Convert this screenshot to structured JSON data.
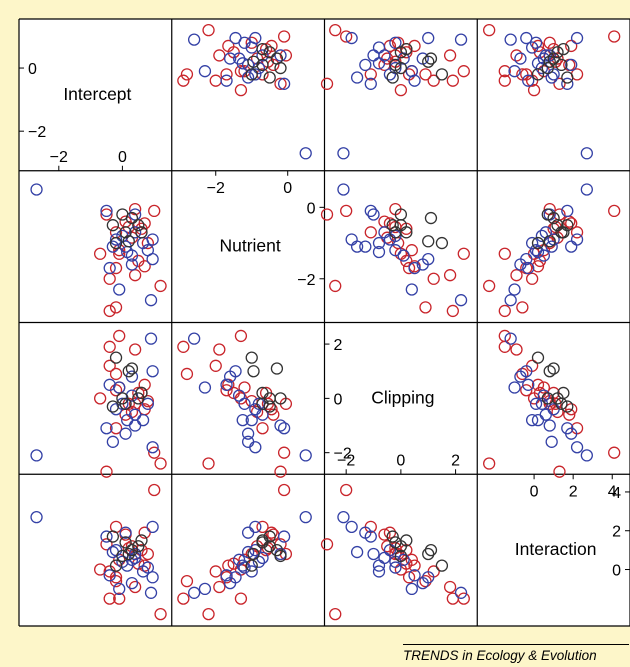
{
  "colors": {
    "background": "#fdf6c9",
    "panel": "#ffffff",
    "red": "#c9252b",
    "blue": "#3441a6",
    "black": "#333333"
  },
  "footer": {
    "source": "TRENDS in Ecology & Evolution"
  },
  "chart_data": {
    "type": "scatter",
    "variables": [
      "Intercept",
      "Nutrient",
      "Clipping",
      "Interaction"
    ],
    "diagonal_labels": [
      "Intercept",
      "Nutrient",
      "Clipping",
      "Interaction"
    ],
    "ranges": {
      "Intercept": [
        -3.0,
        1.3
      ],
      "Nutrient": [
        -3.0,
        0.8
      ],
      "Clipping": [
        -2.5,
        2.5
      ],
      "Interaction": [
        -2.5,
        4.5
      ]
    },
    "ticks": {
      "Intercept": [
        -2,
        0
      ],
      "Nutrient": [
        -2,
        0
      ],
      "Clipping": [
        -2,
        0,
        2
      ],
      "Interaction": [
        0,
        2,
        4
      ]
    },
    "tick_text": {
      "Intercept": [
        "−2",
        "0"
      ],
      "Nutrient": [
        "−2",
        "0"
      ],
      "Clipping": [
        "−2",
        "0",
        "2"
      ],
      "Interaction": [
        "0",
        "2",
        "4"
      ]
    },
    "grid": false,
    "legend": "none",
    "marker": "open-circle",
    "groups": [
      {
        "color": "red",
        "points": [
          [
            1.0,
            -0.1,
            -2.0,
            4.1
          ],
          [
            0.2,
            -0.55,
            -0.2,
            1.1
          ],
          [
            0.4,
            -0.05,
            -0.2,
            0.8
          ],
          [
            0.1,
            -0.4,
            -0.6,
            1.8
          ],
          [
            -0.2,
            -0.7,
            -1.1,
            2.2
          ],
          [
            0.7,
            -0.45,
            -0.4,
            1.9
          ],
          [
            0.6,
            -0.6,
            0.2,
            1.0
          ],
          [
            0.8,
            -1.0,
            -0.1,
            0.8
          ],
          [
            0.3,
            -0.85,
            -0.5,
            1.2
          ],
          [
            -0.1,
            -1.2,
            0.4,
            0.5
          ],
          [
            0.5,
            -1.5,
            0.2,
            0.3
          ],
          [
            0.7,
            -1.65,
            0.5,
            0.2
          ],
          [
            -0.2,
            -1.7,
            0.3,
            -0.4
          ],
          [
            -0.5,
            -0.2,
            -2.7,
            1.3
          ],
          [
            -0.4,
            -2.0,
            1.2,
            -0.1
          ],
          [
            0.4,
            -1.9,
            1.8,
            -0.9
          ],
          [
            -0.1,
            -1.3,
            2.3,
            -1.5
          ],
          [
            -0.2,
            -2.8,
            0.9,
            -0.6
          ],
          [
            -0.4,
            -2.9,
            1.9,
            -1.5
          ],
          [
            1.2,
            -2.2,
            -2.4,
            -2.3
          ],
          [
            -0.7,
            -1.3,
            0.0,
            0.0
          ]
        ]
      },
      {
        "color": "blue",
        "points": [
          [
            -2.7,
            0.5,
            -2.1,
            2.7
          ],
          [
            -0.5,
            -0.1,
            -1.1,
            1.7
          ],
          [
            0.4,
            -0.2,
            -1.0,
            0.8
          ],
          [
            0.1,
            -1.1,
            -1.3,
            1.9
          ],
          [
            0.95,
            -0.9,
            -1.8,
            2.2
          ],
          [
            -0.2,
            -0.9,
            -0.4,
            1.0
          ],
          [
            0.0,
            -0.8,
            -0.2,
            0.4
          ],
          [
            0.4,
            -0.7,
            -0.6,
            0.6
          ],
          [
            0.8,
            -1.2,
            -0.2,
            0.1
          ],
          [
            0.3,
            -1.35,
            0.1,
            0.5
          ],
          [
            0.65,
            -1.0,
            -0.8,
            -0.1
          ],
          [
            0.95,
            -1.45,
            1.0,
            -0.4
          ],
          [
            0.15,
            -1.25,
            -0.8,
            0.2
          ],
          [
            -0.3,
            -1.1,
            -1.6,
            0.9
          ],
          [
            -0.4,
            -1.7,
            0.5,
            -0.3
          ],
          [
            0.9,
            -2.6,
            2.2,
            -1.2
          ],
          [
            0.3,
            -1.6,
            0.8,
            -0.7
          ],
          [
            -0.1,
            -2.3,
            0.4,
            -1.0
          ]
        ]
      },
      {
        "color": "black",
        "points": [
          [
            -0.3,
            -0.5,
            -0.3,
            1.7
          ],
          [
            0.1,
            -0.7,
            -0.2,
            1.4
          ],
          [
            0.5,
            -0.5,
            0.0,
            1.2
          ],
          [
            0.6,
            -0.7,
            0.2,
            1.5
          ],
          [
            0.3,
            -0.3,
            1.1,
            1.0
          ],
          [
            0.2,
            -0.95,
            1.0,
            0.8
          ],
          [
            -0.2,
            -1.0,
            1.5,
            0.2
          ],
          [
            0.0,
            -0.2,
            0.0,
            0.7
          ]
        ]
      }
    ]
  }
}
